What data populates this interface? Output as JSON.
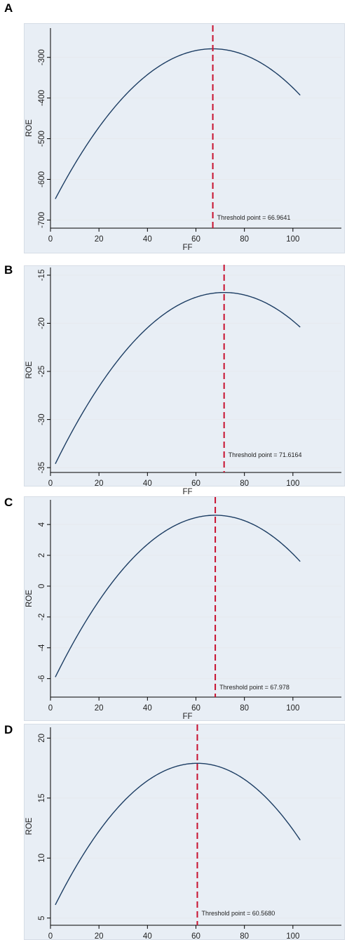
{
  "chart_data": [
    {
      "panel": "A",
      "type": "line",
      "xlabel": "FF",
      "ylabel": "ROE",
      "xlim": [
        0,
        120
      ],
      "xticks": [
        0,
        20,
        40,
        60,
        80,
        100
      ],
      "ylim": [
        -720,
        -228
      ],
      "yticks": [
        -300,
        -400,
        -500,
        -600,
        -700
      ],
      "curve": {
        "x_start": 2,
        "x_end": 103,
        "peak_x": 66.9641,
        "peak_y": -279,
        "y_start": -648,
        "y_end": -393
      },
      "threshold_x": 66.9641,
      "threshold_label": "Threshold point = 66.9641",
      "grid": true
    },
    {
      "panel": "B",
      "type": "line",
      "xlabel": "FF",
      "ylabel": "ROE",
      "xlim": [
        0,
        120
      ],
      "xticks": [
        0,
        20,
        40,
        60,
        80,
        100
      ],
      "ylim": [
        -35.5,
        -14.2
      ],
      "yticks": [
        -15,
        -20,
        -25,
        -30,
        -35
      ],
      "curve": {
        "x_start": 2,
        "x_end": 103,
        "peak_x": 71.6164,
        "peak_y": -16.8,
        "y_start": -34.6,
        "y_end": -20.4
      },
      "threshold_x": 71.6164,
      "threshold_label": "Threshold point = 71.6164",
      "grid": true
    },
    {
      "panel": "C",
      "type": "line",
      "xlabel": "FF",
      "ylabel": "ROE",
      "xlim": [
        0,
        120
      ],
      "xticks": [
        0,
        20,
        40,
        60,
        80,
        100
      ],
      "ylim": [
        -7.2,
        5.6
      ],
      "yticks": [
        4,
        2,
        0,
        -2,
        -4,
        -6
      ],
      "curve": {
        "x_start": 2,
        "x_end": 103,
        "peak_x": 67.978,
        "peak_y": 4.6,
        "y_start": -5.9,
        "y_end": 1.6
      },
      "threshold_x": 67.978,
      "threshold_label": "Threshold point = 67.978",
      "grid": true
    },
    {
      "panel": "D",
      "type": "line",
      "xlabel": "FF",
      "ylabel": "ROE",
      "xlim": [
        0,
        120
      ],
      "xticks": [
        0,
        20,
        40,
        60,
        80,
        100
      ],
      "ylim": [
        4.4,
        20.9
      ],
      "yticks": [
        20,
        15,
        10,
        5
      ],
      "curve": {
        "x_start": 2,
        "x_end": 103,
        "peak_x": 60.568,
        "peak_y": 17.9,
        "y_start": 6.1,
        "y_end": 11.5
      },
      "threshold_x": 60.568,
      "threshold_label": "Threshold point = 60.5680",
      "grid": true
    }
  ],
  "colors": {
    "curve": "#1c3d63",
    "threshold": "#c8102e",
    "panel_background": "#e8eef5",
    "grid": "#e6e9ee"
  }
}
